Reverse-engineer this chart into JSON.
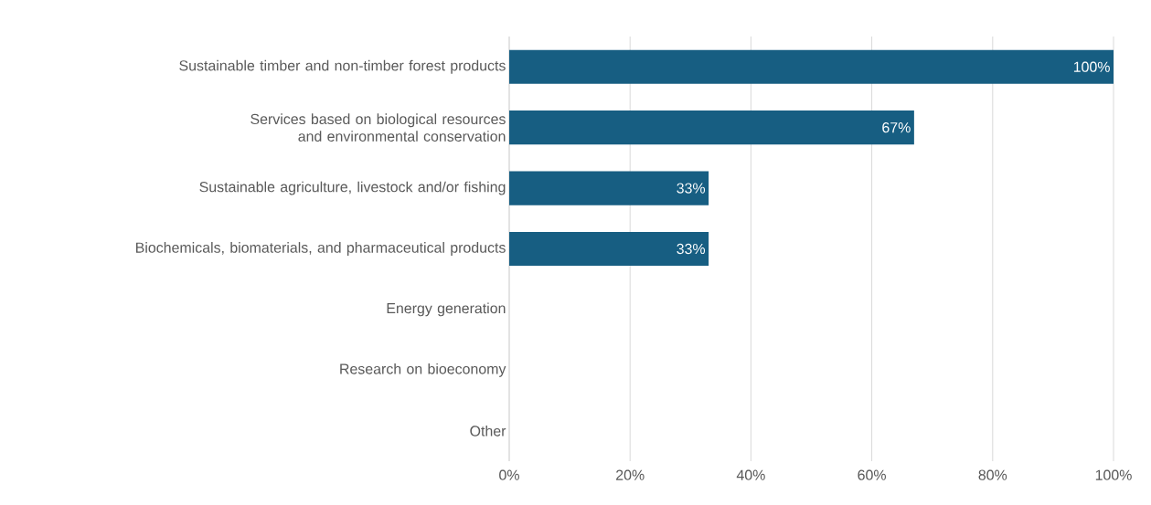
{
  "chart_data": {
    "type": "bar",
    "orientation": "horizontal",
    "categories": [
      "Sustainable timber and non-timber forest products",
      "Services based on biological resources and environmental conservation",
      "Sustainable agriculture, livestock and/or fishing",
      "Biochemicals, biomaterials, and pharmaceutical products",
      "Energy generation",
      "Research on bioeconomy",
      "Other"
    ],
    "values": [
      100,
      67,
      33,
      33,
      0,
      0,
      0
    ],
    "value_labels": [
      "100%",
      "67%",
      "33%",
      "33%",
      null,
      null,
      null
    ],
    "color": "#175e82",
    "xlim": [
      0,
      100
    ],
    "xticks": [
      {
        "value": 0,
        "label": "0%"
      },
      {
        "value": 20,
        "label": "20%"
      },
      {
        "value": 40,
        "label": "40%"
      },
      {
        "value": 60,
        "label": "60%"
      },
      {
        "value": 80,
        "label": "80%"
      },
      {
        "value": 100,
        "label": "100%"
      }
    ],
    "grid": "x"
  }
}
